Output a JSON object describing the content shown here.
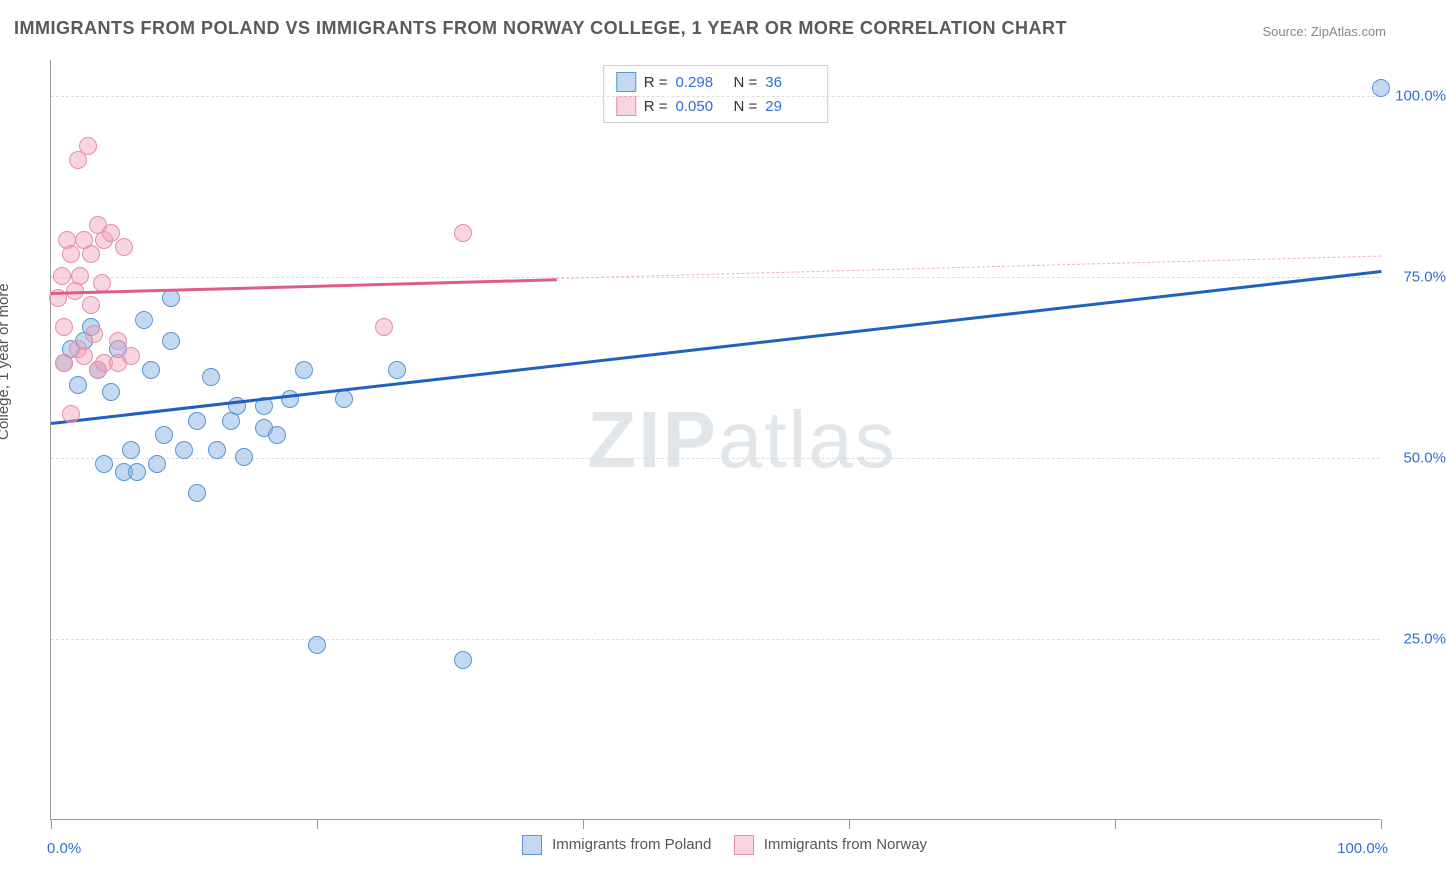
{
  "title": "IMMIGRANTS FROM POLAND VS IMMIGRANTS FROM NORWAY COLLEGE, 1 YEAR OR MORE CORRELATION CHART",
  "source": "Source: ZipAtlas.com",
  "y_label": "College, 1 year or more",
  "watermark_a": "ZIP",
  "watermark_b": "atlas",
  "chart": {
    "type": "scatter",
    "background_color": "#ffffff",
    "grid_color": "#dddddd",
    "axis_color": "#999999",
    "xlim": [
      0,
      100
    ],
    "ylim": [
      0,
      105
    ],
    "y_gridlines": [
      25,
      50,
      75,
      100
    ],
    "y_tick_labels": [
      "25.0%",
      "50.0%",
      "75.0%",
      "100.0%"
    ],
    "x_ticks": [
      0,
      20,
      40,
      60,
      80,
      100
    ],
    "x_axis_labels": {
      "left": "0.0%",
      "right": "100.0%"
    },
    "marker_radius": 9,
    "series": [
      {
        "name": "Immigrants from Poland",
        "color_fill": "rgba(120,170,225,0.45)",
        "color_stroke": "#5a96d4",
        "trend_color": "#2060c0",
        "R": "0.298",
        "N": "36",
        "trend": {
          "x1": 0,
          "y1": 55,
          "x2": 100,
          "y2": 76,
          "solid_until_x": 100
        },
        "points": [
          {
            "x": 1,
            "y": 63
          },
          {
            "x": 1.5,
            "y": 65
          },
          {
            "x": 2,
            "y": 60
          },
          {
            "x": 2.5,
            "y": 66
          },
          {
            "x": 3,
            "y": 68
          },
          {
            "x": 3.5,
            "y": 62
          },
          {
            "x": 4,
            "y": 49
          },
          {
            "x": 4.5,
            "y": 59
          },
          {
            "x": 5,
            "y": 65
          },
          {
            "x": 5.5,
            "y": 48
          },
          {
            "x": 6,
            "y": 51
          },
          {
            "x": 6.5,
            "y": 48
          },
          {
            "x": 7,
            "y": 69
          },
          {
            "x": 7.5,
            "y": 62
          },
          {
            "x": 8,
            "y": 49
          },
          {
            "x": 8.5,
            "y": 53
          },
          {
            "x": 9,
            "y": 72
          },
          {
            "x": 9,
            "y": 66
          },
          {
            "x": 10,
            "y": 51
          },
          {
            "x": 11,
            "y": 55
          },
          {
            "x": 11,
            "y": 45
          },
          {
            "x": 12,
            "y": 61
          },
          {
            "x": 12.5,
            "y": 51
          },
          {
            "x": 13.5,
            "y": 55
          },
          {
            "x": 14,
            "y": 57
          },
          {
            "x": 14.5,
            "y": 50
          },
          {
            "x": 16,
            "y": 54
          },
          {
            "x": 16,
            "y": 57
          },
          {
            "x": 17,
            "y": 53
          },
          {
            "x": 18,
            "y": 58
          },
          {
            "x": 19,
            "y": 62
          },
          {
            "x": 20,
            "y": 24
          },
          {
            "x": 22,
            "y": 58
          },
          {
            "x": 26,
            "y": 62
          },
          {
            "x": 31,
            "y": 22
          },
          {
            "x": 100,
            "y": 101
          }
        ]
      },
      {
        "name": "Immigrants from Norway",
        "color_fill": "rgba(240,160,185,0.45)",
        "color_stroke": "#e38fae",
        "trend_color": "#e05a8a",
        "R": "0.050",
        "N": "29",
        "trend": {
          "x1": 0,
          "y1": 73,
          "x2": 100,
          "y2": 78,
          "solid_until_x": 38
        },
        "points": [
          {
            "x": 0.5,
            "y": 72
          },
          {
            "x": 0.8,
            "y": 75
          },
          {
            "x": 1,
            "y": 63
          },
          {
            "x": 1,
            "y": 68
          },
          {
            "x": 1.2,
            "y": 80
          },
          {
            "x": 1.5,
            "y": 56
          },
          {
            "x": 1.5,
            "y": 78
          },
          {
            "x": 1.8,
            "y": 73
          },
          {
            "x": 2,
            "y": 65
          },
          {
            "x": 2,
            "y": 91
          },
          {
            "x": 2.2,
            "y": 75
          },
          {
            "x": 2.5,
            "y": 80
          },
          {
            "x": 2.5,
            "y": 64
          },
          {
            "x": 2.8,
            "y": 93
          },
          {
            "x": 3,
            "y": 71
          },
          {
            "x": 3,
            "y": 78
          },
          {
            "x": 3.2,
            "y": 67
          },
          {
            "x": 3.5,
            "y": 62
          },
          {
            "x": 3.5,
            "y": 82
          },
          {
            "x": 3.8,
            "y": 74
          },
          {
            "x": 4,
            "y": 63
          },
          {
            "x": 4,
            "y": 80
          },
          {
            "x": 4.5,
            "y": 81
          },
          {
            "x": 5,
            "y": 66
          },
          {
            "x": 5,
            "y": 63
          },
          {
            "x": 5.5,
            "y": 79
          },
          {
            "x": 6,
            "y": 64
          },
          {
            "x": 25,
            "y": 68
          },
          {
            "x": 31,
            "y": 81
          }
        ]
      }
    ],
    "bottom_legend": [
      {
        "swatch": "blue",
        "label": "Immigrants from Poland"
      },
      {
        "swatch": "pink",
        "label": "Immigrants from Norway"
      }
    ]
  }
}
